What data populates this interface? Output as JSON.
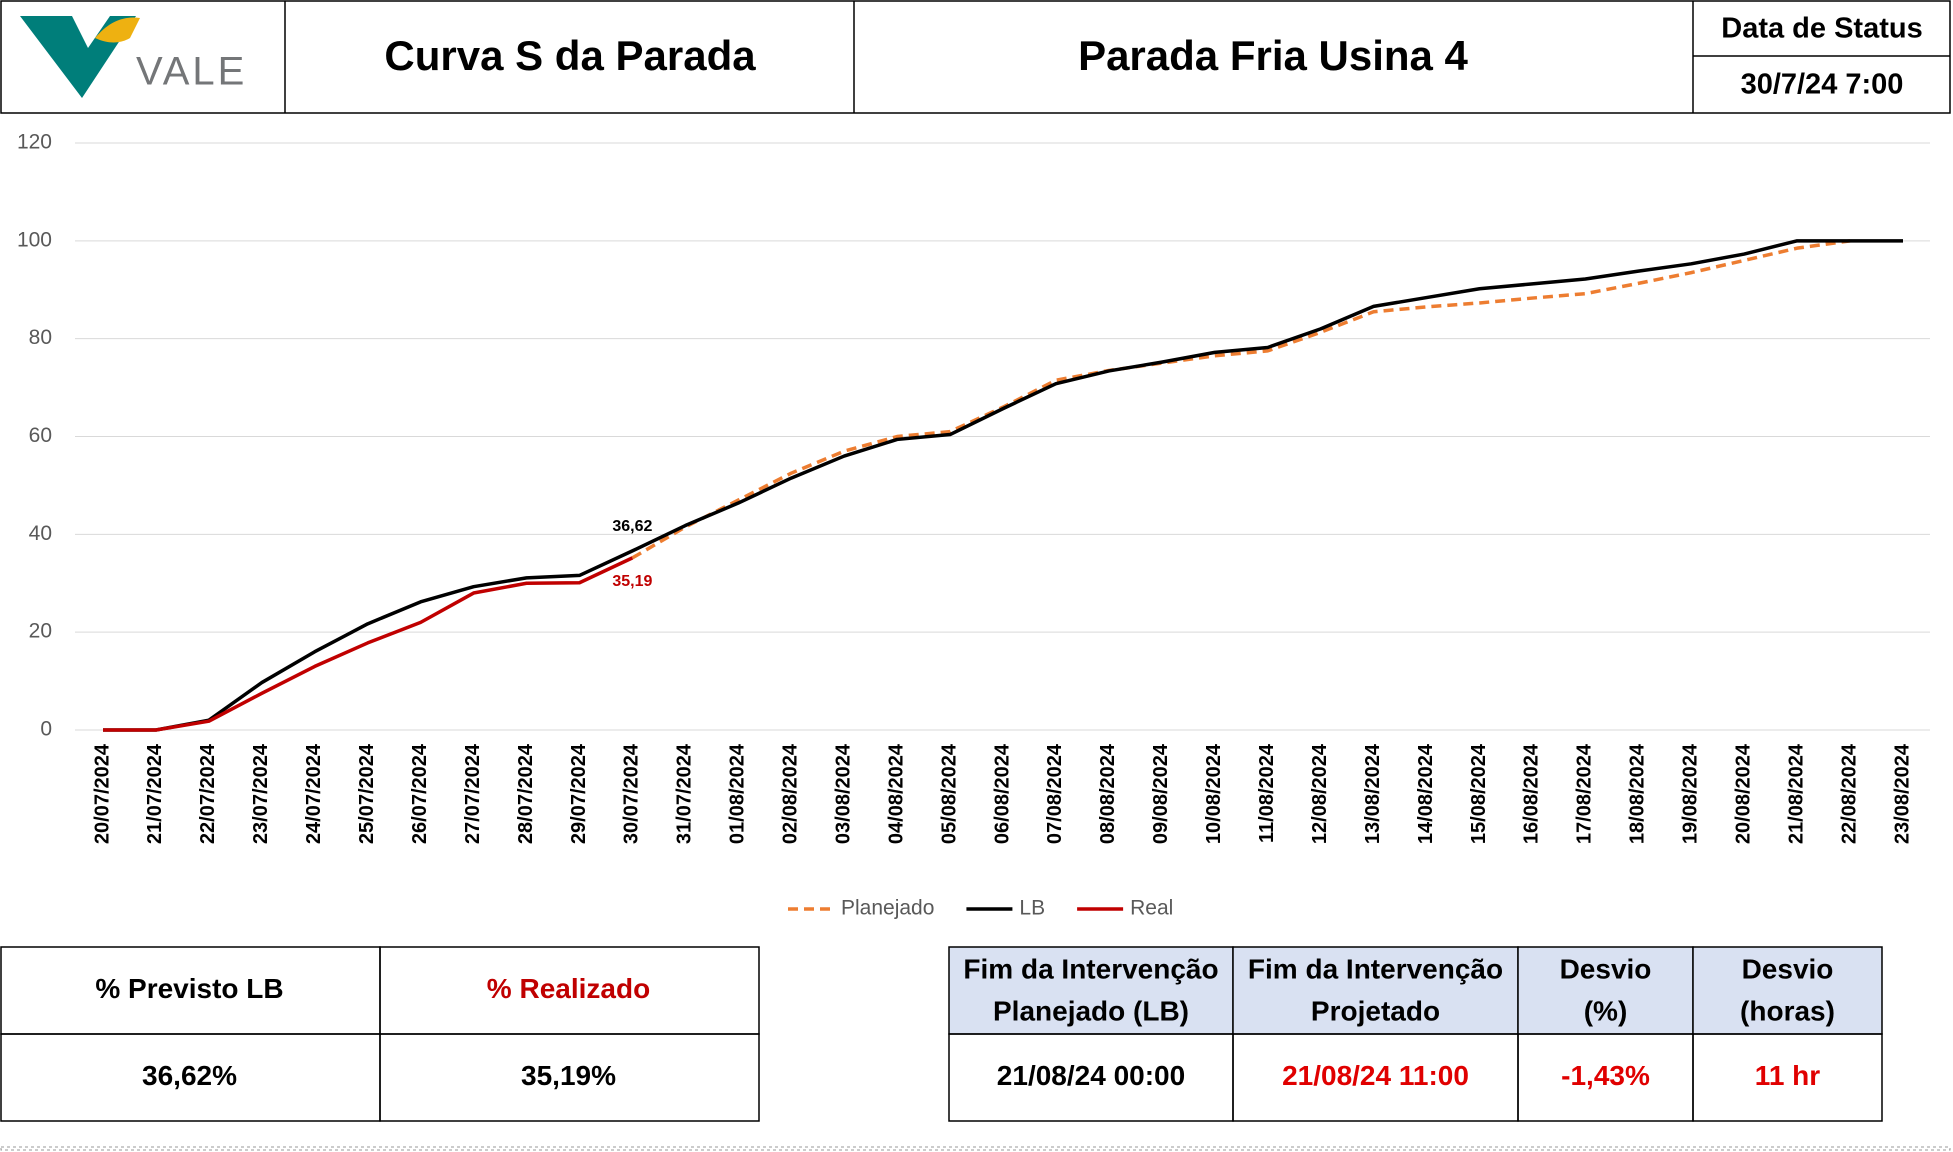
{
  "header": {
    "logo_text": "VALE",
    "title": "Curva S da Parada",
    "subtitle": "Parada Fria Usina 4",
    "status_label": "Data de Status",
    "status_value": "30/7/24 7:00"
  },
  "chart_data": {
    "type": "line",
    "categories": [
      "20/07/2024",
      "21/07/2024",
      "22/07/2024",
      "23/07/2024",
      "24/07/2024",
      "25/07/2024",
      "26/07/2024",
      "27/07/2024",
      "28/07/2024",
      "29/07/2024",
      "30/07/2024",
      "31/07/2024",
      "01/08/2024",
      "02/08/2024",
      "03/08/2024",
      "04/08/2024",
      "05/08/2024",
      "06/08/2024",
      "07/08/2024",
      "08/08/2024",
      "09/08/2024",
      "10/08/2024",
      "11/08/2024",
      "12/08/2024",
      "13/08/2024",
      "14/08/2024",
      "15/08/2024",
      "16/08/2024",
      "17/08/2024",
      "18/08/2024",
      "19/08/2024",
      "20/08/2024",
      "21/08/2024",
      "22/08/2024",
      "23/08/2024"
    ],
    "series": [
      {
        "name": "Planejado",
        "color": "#ed7d31",
        "line_style": "dashed",
        "values": [
          null,
          null,
          null,
          null,
          null,
          null,
          null,
          null,
          null,
          null,
          35.19,
          41.5,
          47,
          52.5,
          57,
          60,
          61,
          66,
          71.5,
          73.5,
          75,
          76.5,
          77.5,
          81.3,
          85.5,
          86.5,
          87.3,
          88.3,
          89.2,
          91.3,
          93.5,
          96,
          98.5,
          100,
          null
        ]
      },
      {
        "name": "LB",
        "color": "#000000",
        "line_style": "solid",
        "values": [
          0,
          0,
          2,
          9.7,
          16,
          21.7,
          26.2,
          29.3,
          31.1,
          31.6,
          36.62,
          41.8,
          46.4,
          51.5,
          56,
          59.4,
          60.4,
          65.7,
          70.8,
          73.4,
          75.2,
          77.2,
          78.2,
          82,
          86.6,
          88.4,
          90.2,
          91.2,
          92.2,
          93.8,
          95.3,
          97.3,
          100,
          100,
          100
        ],
        "value_labels": [
          null,
          null,
          null,
          null,
          null,
          null,
          null,
          null,
          null,
          null,
          "36,62",
          null,
          null,
          null,
          null,
          null,
          null,
          null,
          null,
          null,
          null,
          null,
          null,
          null,
          null,
          null,
          null,
          null,
          null,
          null,
          null,
          null,
          null,
          null,
          null
        ]
      },
      {
        "name": "Real",
        "color": "#c00000",
        "line_style": "solid",
        "values": [
          0,
          0,
          1.8,
          7.5,
          13,
          17.8,
          22,
          28,
          30,
          30.1,
          35.19,
          null,
          null,
          null,
          null,
          null,
          null,
          null,
          null,
          null,
          null,
          null,
          null,
          null,
          null,
          null,
          null,
          null,
          null,
          null,
          null,
          null,
          null,
          null,
          null
        ],
        "value_labels": [
          null,
          null,
          null,
          null,
          null,
          null,
          null,
          null,
          null,
          null,
          "35,19",
          null,
          null,
          null,
          null,
          null,
          null,
          null,
          null,
          null,
          null,
          null,
          null,
          null,
          null,
          null,
          null,
          null,
          null,
          null,
          null,
          null,
          null,
          null,
          null
        ]
      }
    ],
    "ylim": [
      0,
      120
    ],
    "yticks": [
      0,
      20,
      40,
      60,
      80,
      100,
      120
    ],
    "grid": true,
    "legend": "bottom"
  },
  "progress_table": {
    "headers": [
      "% Previsto LB",
      "% Realizado"
    ],
    "row": [
      "36,62%",
      "35,19%"
    ]
  },
  "end_table": {
    "headers": [
      [
        "Fim da Intervenção",
        "Planejado (LB)"
      ],
      [
        "Fim da Intervenção",
        "Projetado"
      ],
      [
        "Desvio",
        "(%)"
      ],
      [
        "Desvio",
        "(horas)"
      ]
    ],
    "row": [
      "21/08/24 00:00",
      "21/08/24 11:00",
      "-1,43%",
      "11 hr"
    ]
  }
}
